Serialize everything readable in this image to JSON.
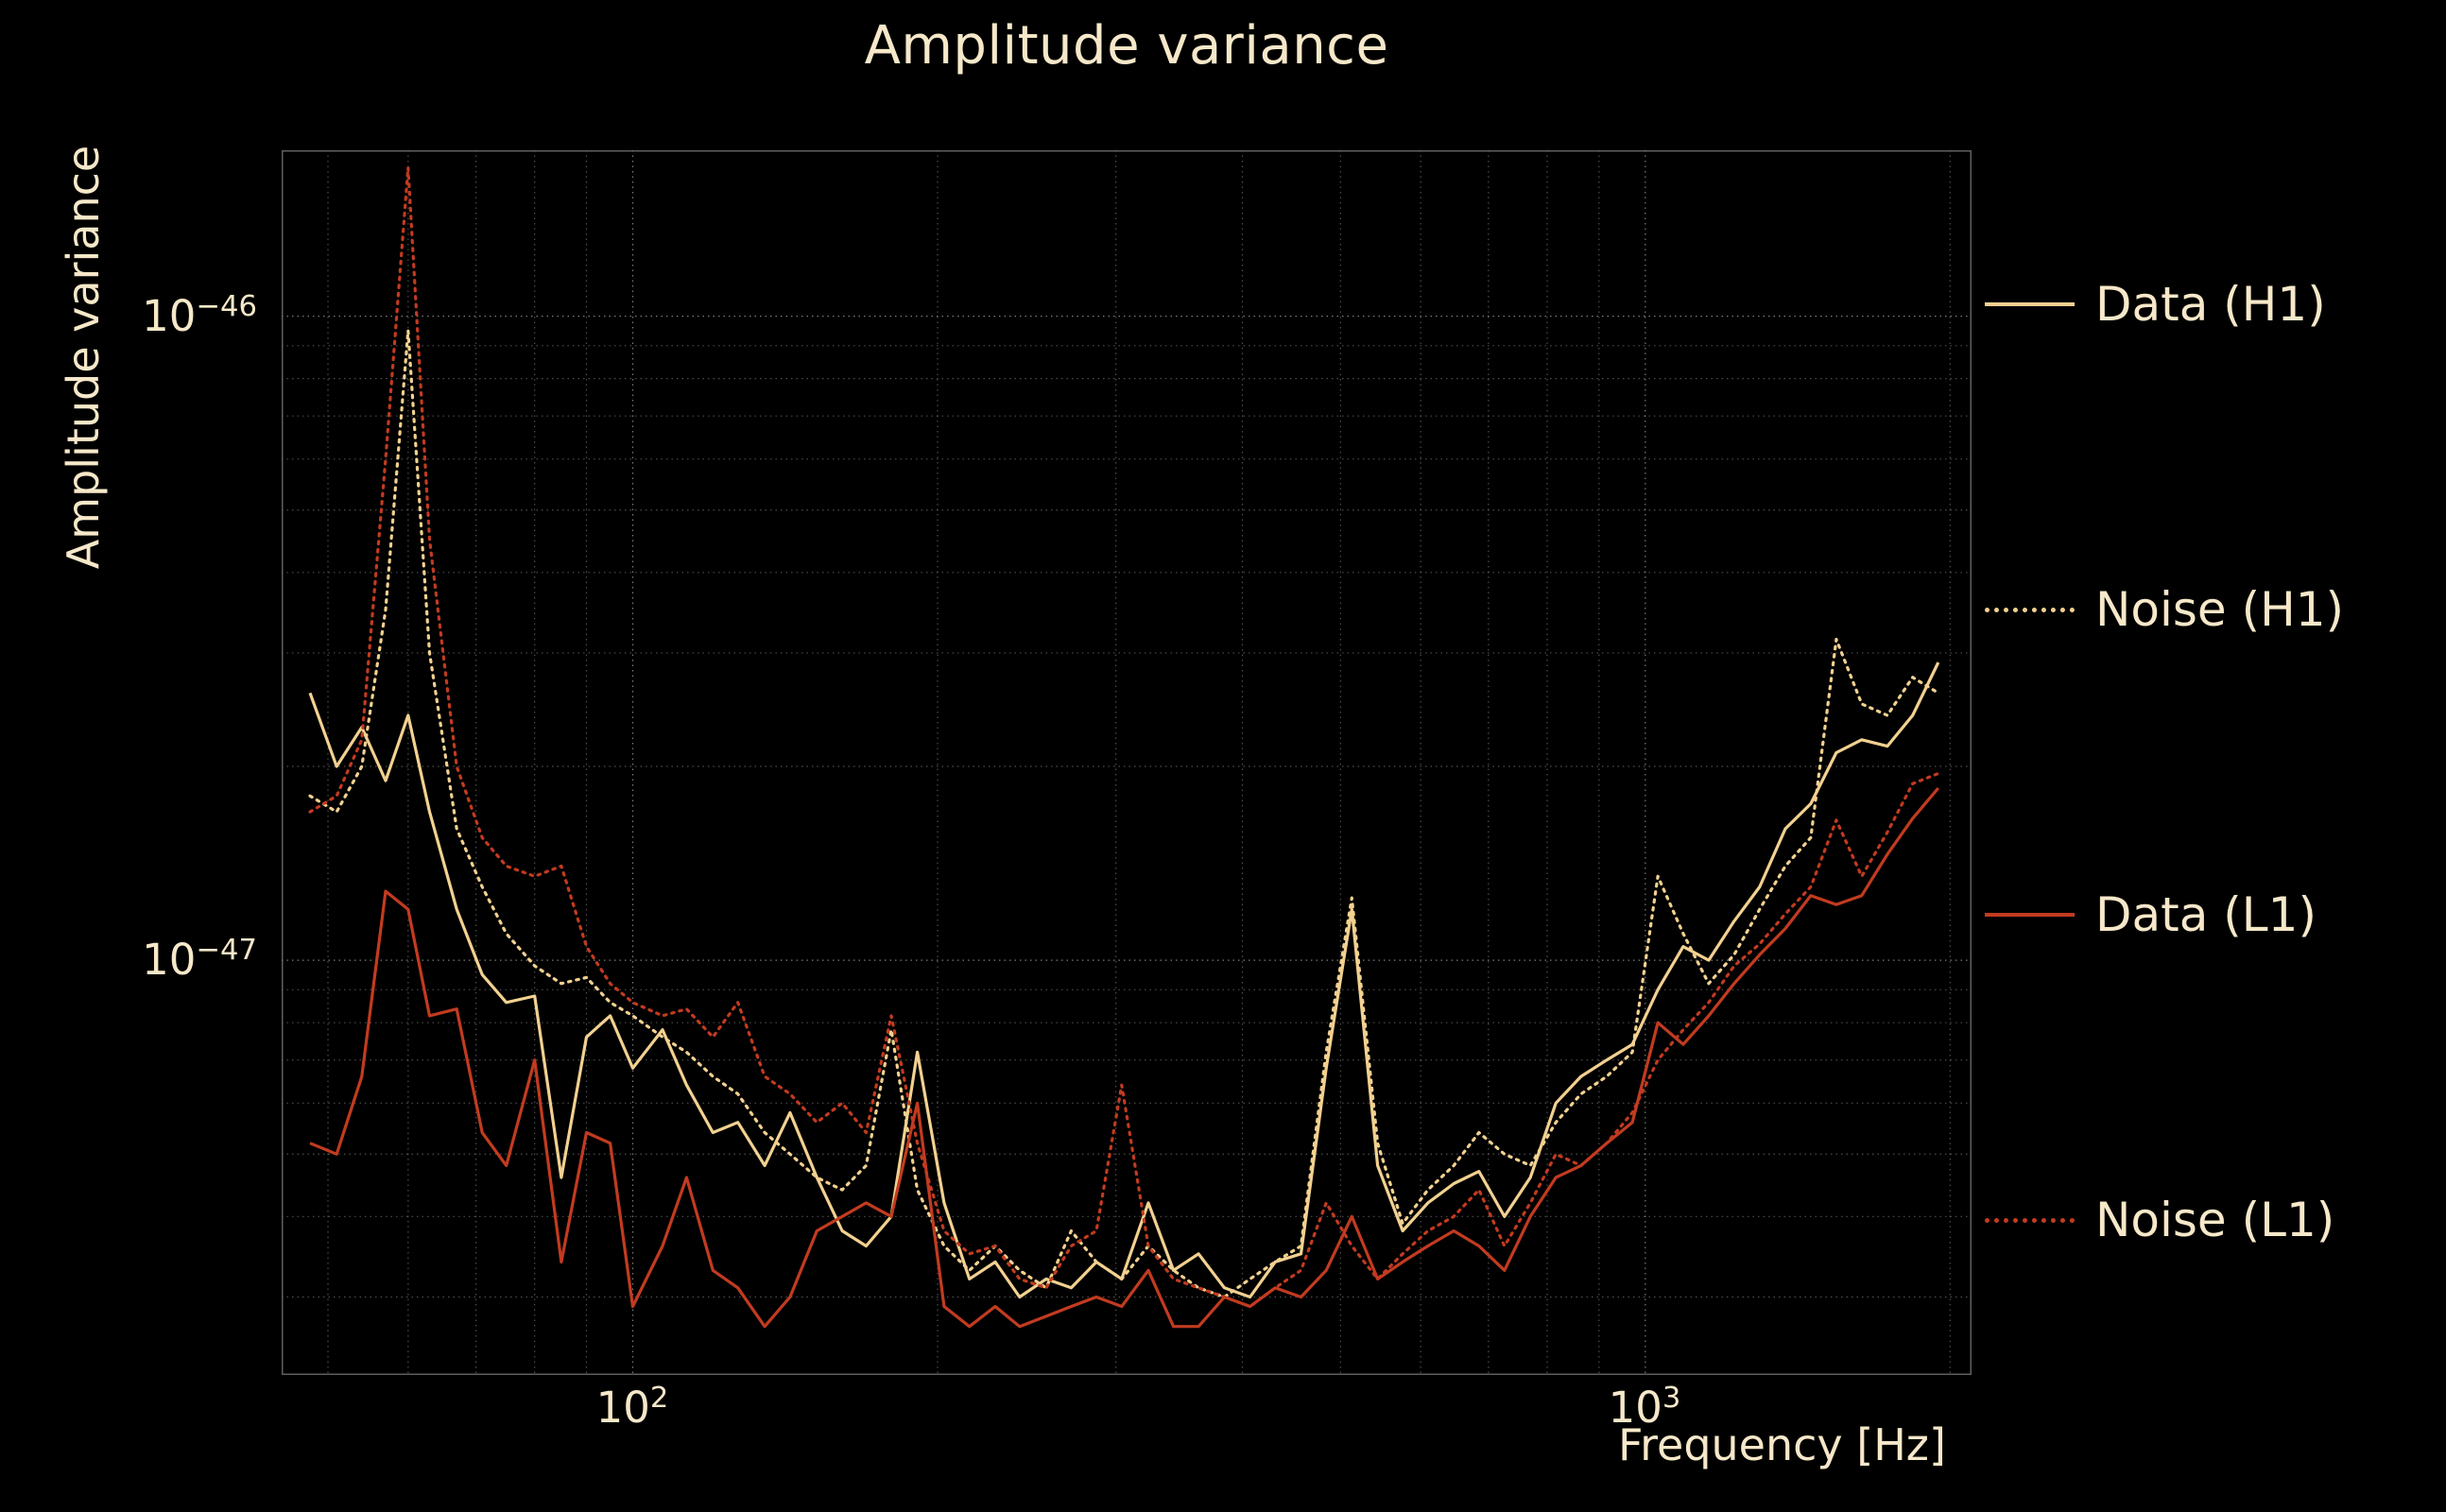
{
  "figure": {
    "background": "#000000",
    "text_color": "#f6e8c9"
  },
  "chart_data": {
    "type": "line",
    "title": "Amplitude variance",
    "xlabel": "Frequency [Hz]",
    "ylabel": "Amplitude variance",
    "x_scale": "log",
    "y_scale": "log",
    "xlim": [
      45,
      2100
    ],
    "ylim": [
      2.27e-48,
      1.81e-46
    ],
    "grid": {
      "visible": true,
      "style": "dotted",
      "color": "#9b9b9b"
    },
    "legend_position": "right-outside",
    "xticks": [
      {
        "base": "10",
        "exp": "2",
        "value": 100
      },
      {
        "base": "10",
        "exp": "3",
        "value": 1000
      }
    ],
    "yticks": [
      {
        "base": "10",
        "exp": "−46",
        "value": 1e-46
      },
      {
        "base": "10",
        "exp": "−47",
        "value": 1e-47
      }
    ],
    "value_unit": 1e-48,
    "x": [
      48,
      51,
      54,
      57,
      60,
      63,
      67,
      71,
      75,
      80,
      85,
      90,
      95,
      100,
      107,
      113,
      120,
      127,
      135,
      143,
      152,
      161,
      170,
      180,
      191,
      203,
      215,
      228,
      241,
      256,
      271,
      287,
      304,
      323,
      342,
      362,
      384,
      407,
      431,
      457,
      484,
      513,
      544,
      576,
      610,
      647,
      685,
      726,
      770,
      816,
      864,
      916,
      971,
      1029,
      1090,
      1155,
      1224,
      1297,
      1375,
      1457,
      1544,
      1636,
      1734,
      1837,
      1947
    ],
    "series": [
      {
        "name": "Data (H1)",
        "color": "#f2d190",
        "line_style": "solid",
        "values": [
          26,
          20,
          23,
          19,
          24,
          17,
          12,
          9.5,
          8.6,
          8.8,
          4.6,
          7.6,
          8.2,
          6.8,
          7.8,
          6.4,
          5.4,
          5.6,
          4.8,
          5.8,
          4.6,
          3.8,
          3.6,
          4.0,
          7.2,
          4.2,
          3.2,
          3.4,
          3.0,
          3.2,
          3.1,
          3.4,
          3.2,
          4.2,
          3.3,
          3.5,
          3.1,
          3.0,
          3.4,
          3.5,
          6.8,
          12.0,
          4.8,
          3.8,
          4.2,
          4.5,
          4.7,
          4.0,
          4.6,
          6.0,
          6.6,
          7.0,
          7.4,
          9.0,
          10.5,
          10.0,
          11.5,
          13.0,
          16.0,
          17.5,
          21.0,
          22.0,
          21.5,
          24.0,
          29.0
        ]
      },
      {
        "name": "Noise (H1)",
        "color": "#f2d190",
        "line_style": "dotted",
        "values": [
          18,
          17,
          20,
          35,
          95,
          30,
          16,
          13,
          11,
          9.8,
          9.2,
          9.4,
          8.6,
          8.2,
          7.6,
          7.2,
          6.6,
          6.2,
          5.4,
          5.0,
          4.6,
          4.4,
          4.8,
          7.8,
          4.4,
          3.6,
          3.3,
          3.6,
          3.3,
          3.1,
          3.8,
          3.4,
          3.2,
          3.6,
          3.3,
          3.1,
          3.0,
          3.2,
          3.4,
          3.6,
          7.2,
          12.5,
          5.2,
          3.9,
          4.4,
          4.8,
          5.4,
          5.0,
          4.8,
          5.6,
          6.2,
          6.6,
          7.2,
          13.5,
          11.0,
          9.2,
          10.2,
          12.0,
          14.0,
          15.5,
          31.5,
          25.0,
          24.0,
          27.5,
          26.0
        ]
      },
      {
        "name": "Data (L1)",
        "color": "#c23b20",
        "line_style": "solid",
        "values": [
          5.2,
          5.0,
          6.6,
          12.8,
          12.0,
          8.2,
          8.4,
          5.4,
          4.8,
          7.0,
          3.4,
          5.4,
          5.2,
          2.9,
          3.6,
          4.6,
          3.3,
          3.1,
          2.7,
          3.0,
          3.8,
          4.0,
          4.2,
          4.0,
          6.0,
          2.9,
          2.7,
          2.9,
          2.7,
          2.8,
          2.9,
          3.0,
          2.9,
          3.3,
          2.7,
          2.7,
          3.0,
          2.9,
          3.1,
          3.0,
          3.3,
          4.0,
          3.2,
          3.4,
          3.6,
          3.8,
          3.6,
          3.3,
          4.0,
          4.6,
          4.8,
          5.2,
          5.6,
          8.0,
          7.4,
          8.2,
          9.2,
          10.2,
          11.2,
          12.6,
          12.2,
          12.6,
          14.6,
          16.6,
          18.5
        ]
      },
      {
        "name": "Noise (L1)",
        "color": "#c23b20",
        "line_style": "dotted",
        "values": [
          17,
          18,
          22,
          60,
          170,
          45,
          20,
          15.5,
          14,
          13.5,
          14,
          10.5,
          9.2,
          8.6,
          8.2,
          8.4,
          7.6,
          8.6,
          6.6,
          6.2,
          5.6,
          6.0,
          5.4,
          8.2,
          5.2,
          3.8,
          3.5,
          3.6,
          3.2,
          3.1,
          3.6,
          3.8,
          6.4,
          3.6,
          3.2,
          3.1,
          3.0,
          2.9,
          3.1,
          3.3,
          4.2,
          3.6,
          3.2,
          3.5,
          3.8,
          4.0,
          4.4,
          3.6,
          4.2,
          5.0,
          4.8,
          5.2,
          5.8,
          7.0,
          7.8,
          8.6,
          9.8,
          10.6,
          11.8,
          13.0,
          16.5,
          13.5,
          15.8,
          18.8,
          19.5
        ]
      }
    ]
  }
}
